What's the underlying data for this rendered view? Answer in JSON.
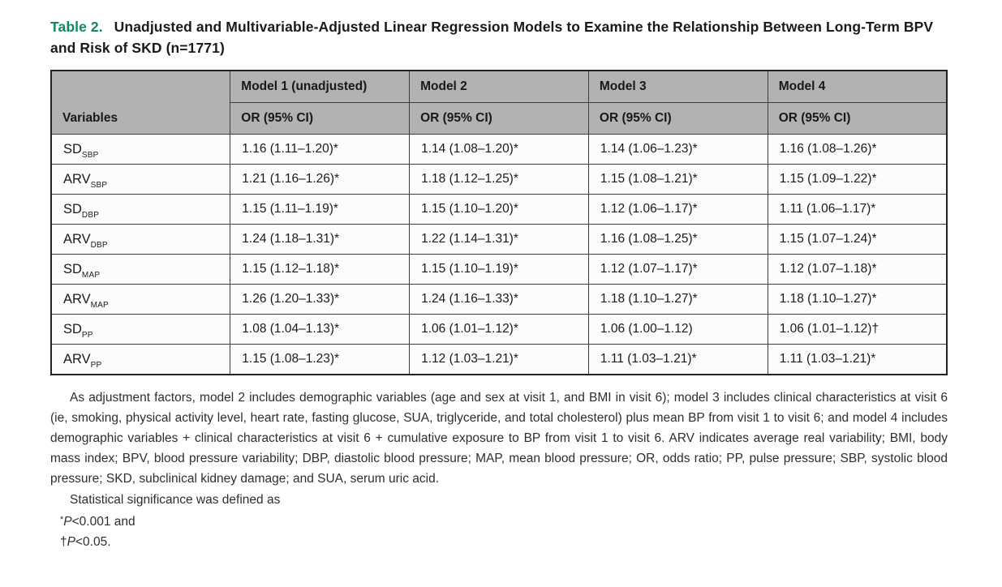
{
  "title": {
    "label": "Table 2.",
    "text": "Unadjusted and Multivariable-Adjusted Linear Regression Models to Examine the Relationship Between Long-Term BPV and Risk of SKD (n=1771)",
    "label_color": "#0f8a60"
  },
  "table": {
    "variables_header": "Variables",
    "or_header": "OR (95% CI)",
    "models": [
      "Model 1 (unadjusted)",
      "Model 2",
      "Model 3",
      "Model 4"
    ],
    "header_bg_color": "#b2b2b2",
    "rows": [
      {
        "variable_base": "SD",
        "variable_sub": "SBP",
        "values": [
          "1.16 (1.11–1.20)*",
          "1.14 (1.08–1.20)*",
          "1.14 (1.06–1.23)*",
          "1.16 (1.08–1.26)*"
        ]
      },
      {
        "variable_base": "ARV",
        "variable_sub": "SBP",
        "values": [
          "1.21 (1.16–1.26)*",
          "1.18 (1.12–1.25)*",
          "1.15 (1.08–1.21)*",
          "1.15 (1.09–1.22)*"
        ]
      },
      {
        "variable_base": "SD",
        "variable_sub": "DBP",
        "values": [
          "1.15 (1.11–1.19)*",
          "1.15 (1.10–1.20)*",
          "1.12 (1.06–1.17)*",
          "1.11 (1.06–1.17)*"
        ]
      },
      {
        "variable_base": "ARV",
        "variable_sub": "DBP",
        "values": [
          "1.24 (1.18–1.31)*",
          "1.22 (1.14–1.31)*",
          "1.16 (1.08–1.25)*",
          "1.15 (1.07–1.24)*"
        ]
      },
      {
        "variable_base": "SD",
        "variable_sub": "MAP",
        "values": [
          "1.15 (1.12–1.18)*",
          "1.15 (1.10–1.19)*",
          "1.12 (1.07–1.17)*",
          "1.12 (1.07–1.18)*"
        ]
      },
      {
        "variable_base": "ARV",
        "variable_sub": "MAP",
        "values": [
          "1.26 (1.20–1.33)*",
          "1.24 (1.16–1.33)*",
          "1.18 (1.10–1.27)*",
          "1.18 (1.10–1.27)*"
        ]
      },
      {
        "variable_base": "SD",
        "variable_sub": "PP",
        "values": [
          "1.08 (1.04–1.13)*",
          "1.06 (1.01–1.12)*",
          "1.06 (1.00–1.12)",
          "1.06 (1.01–1.12)†"
        ]
      },
      {
        "variable_base": "ARV",
        "variable_sub": "PP",
        "values": [
          "1.15 (1.08–1.23)*",
          "1.12 (1.03–1.21)*",
          "1.11 (1.03–1.21)*",
          "1.11 (1.03–1.21)*"
        ]
      }
    ]
  },
  "footnote": {
    "adjustment_text": "As adjustment factors, model 2 includes demographic variables (age and sex at visit 1, and BMI in visit 6); model 3 includes clinical characteristics at visit 6 (ie, smoking, physical activity level, heart rate, fasting glucose, SUA, triglyceride, and total cholesterol) plus mean BP from visit 1 to visit 6; and model 4 includes demographic variables + clinical characteristics at visit 6 + cumulative exposure to BP from visit 1 to visit 6. ARV indicates average real variability; BMI, body mass index; BPV, blood pressure variability; DBP, diastolic blood pressure; MAP, mean blood pressure; OR, odds ratio; PP, pulse pressure; SBP, systolic blood pressure; SKD, subclinical kidney damage; and SUA, serum uric acid.",
    "significance_intro": "Statistical significance was defined as",
    "significance_lines": [
      {
        "marker": "*",
        "p": "P",
        "suffix": "<0.001 and"
      },
      {
        "marker": "†",
        "p": "P",
        "suffix": "<0.05."
      }
    ]
  }
}
